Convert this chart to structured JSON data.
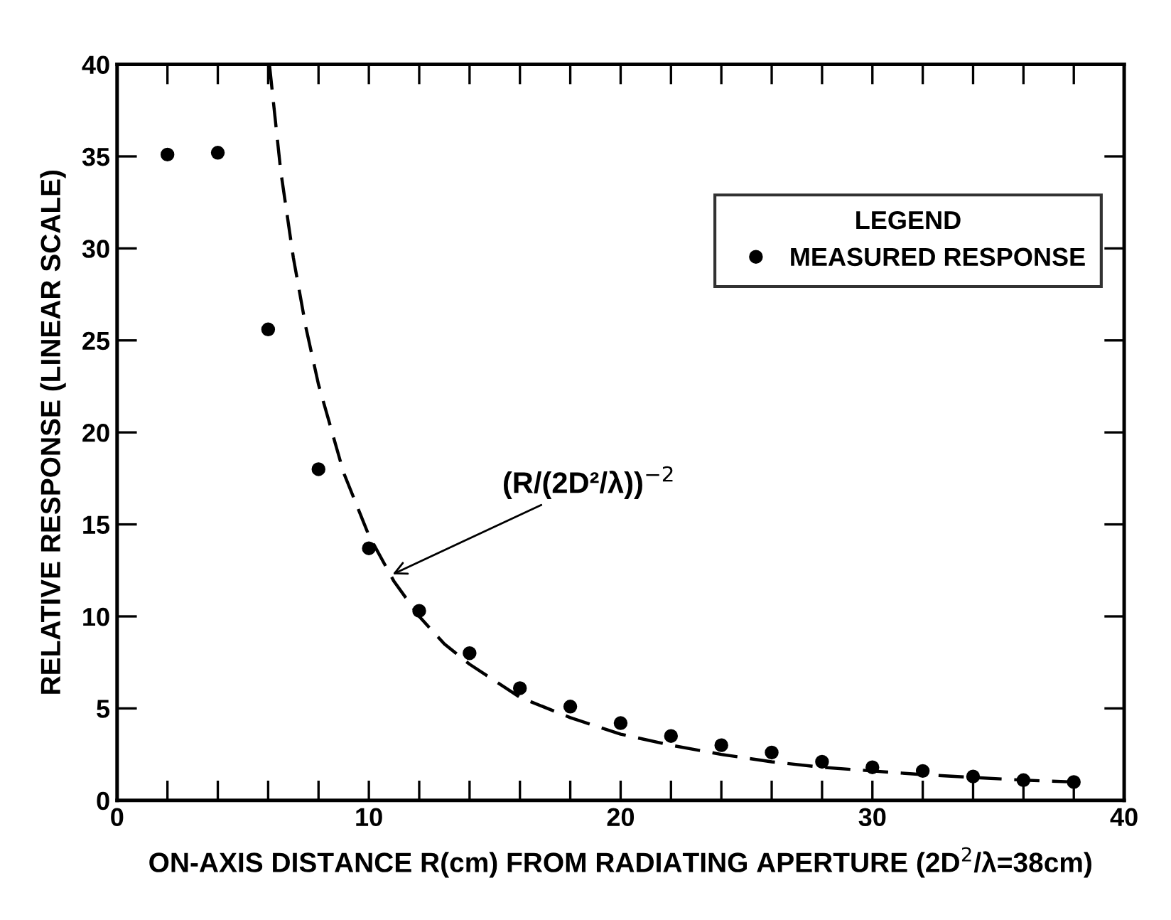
{
  "chart_data": {
    "type": "scatter",
    "xlabel": "ON-AXIS DISTANCE R(cm) FROM RADIATING APERTURE (2D$^{2}$/λ=38cm)",
    "ylabel": "RELATIVE RESPONSE (LINEAR SCALE)",
    "legend_title": "LEGEND",
    "series": [
      {
        "name": "MEASURED RESPONSE",
        "color": "#000000",
        "marker": "circle",
        "x": [
          2,
          4,
          6,
          8,
          10,
          12,
          14,
          16,
          18,
          20,
          22,
          24,
          26,
          28,
          30,
          32,
          34,
          36,
          38
        ],
        "values": [
          35.1,
          35.2,
          25.6,
          18.0,
          13.7,
          10.3,
          8.0,
          6.1,
          5.1,
          4.2,
          3.5,
          3.0,
          2.6,
          2.1,
          1.8,
          1.6,
          1.3,
          1.1,
          1.0
        ]
      },
      {
        "type": "line",
        "color": "#000000",
        "line_style": "dashed",
        "x": [
          6.05,
          6.5,
          7,
          7.5,
          8,
          9,
          10,
          11,
          12,
          13,
          14,
          16,
          18,
          20,
          22,
          24,
          26,
          28,
          30,
          32,
          34,
          36,
          38
        ],
        "values": [
          40,
          34.2,
          29.5,
          25.7,
          22.6,
          17.8,
          14.4,
          11.9,
          10.0,
          8.5,
          7.4,
          5.6,
          4.5,
          3.6,
          3.0,
          2.5,
          2.1,
          1.8,
          1.6,
          1.4,
          1.25,
          1.1,
          1.0
        ]
      }
    ],
    "annotations": [
      {
        "text": "(R/(2D²/λ))$^{−2}$",
        "x": 10.8,
        "y": 12.2
      }
    ],
    "xlim": [
      0,
      40
    ],
    "ylim": [
      0,
      40
    ],
    "xticks": [
      0,
      {
        "value": 2,
        "label": null
      },
      {
        "value": 4,
        "label": null
      },
      {
        "value": 6,
        "label": null
      },
      {
        "value": 8,
        "label": null
      },
      10,
      {
        "value": 12,
        "label": null
      },
      {
        "value": 14,
        "label": null
      },
      {
        "value": 16,
        "label": null
      },
      {
        "value": 18,
        "label": null
      },
      20,
      {
        "value": 22,
        "label": null
      },
      {
        "value": 24,
        "label": null
      },
      {
        "value": 26,
        "label": null
      },
      {
        "value": 28,
        "label": null
      },
      30,
      {
        "value": 32,
        "label": null
      },
      {
        "value": 34,
        "label": null
      },
      {
        "value": 36,
        "label": null
      },
      {
        "value": 38,
        "label": null
      },
      40
    ],
    "yticks": [
      0,
      5,
      10,
      15,
      20,
      25,
      30,
      35,
      40
    ],
    "grid": false,
    "legend": "top right"
  }
}
